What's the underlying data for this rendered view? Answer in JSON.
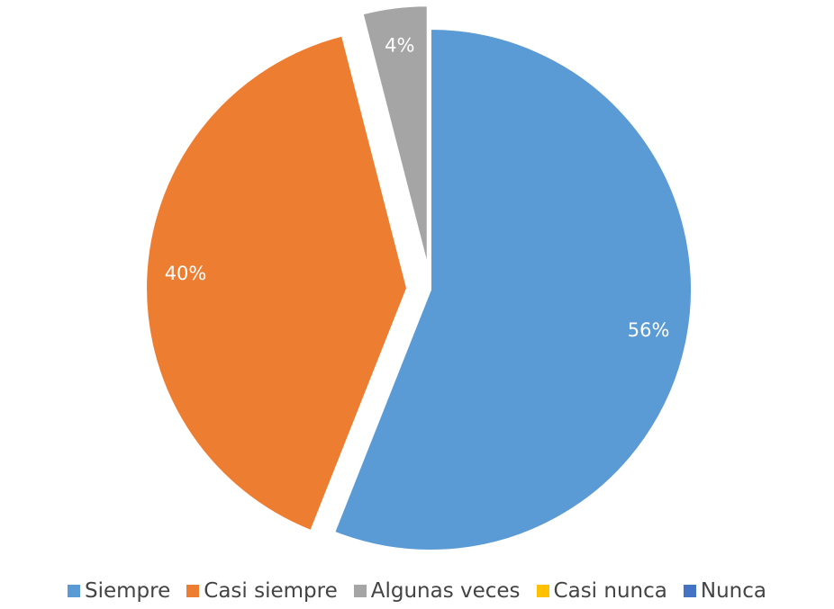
{
  "chart_data": {
    "type": "pie",
    "categories": [
      "Siempre",
      "Casi siempre",
      "Algunas veces",
      "Casi nunca",
      "Nunca"
    ],
    "values": [
      56,
      40,
      4,
      0,
      0
    ],
    "value_labels": [
      "56%",
      "40%",
      "4%",
      null,
      null
    ],
    "colors": [
      "#5b9bd5",
      "#ed7d31",
      "#a5a5a5",
      "#ffc000",
      "#4472c4"
    ],
    "exploded": [
      false,
      true,
      true,
      false,
      false
    ],
    "legend": "bottom"
  }
}
